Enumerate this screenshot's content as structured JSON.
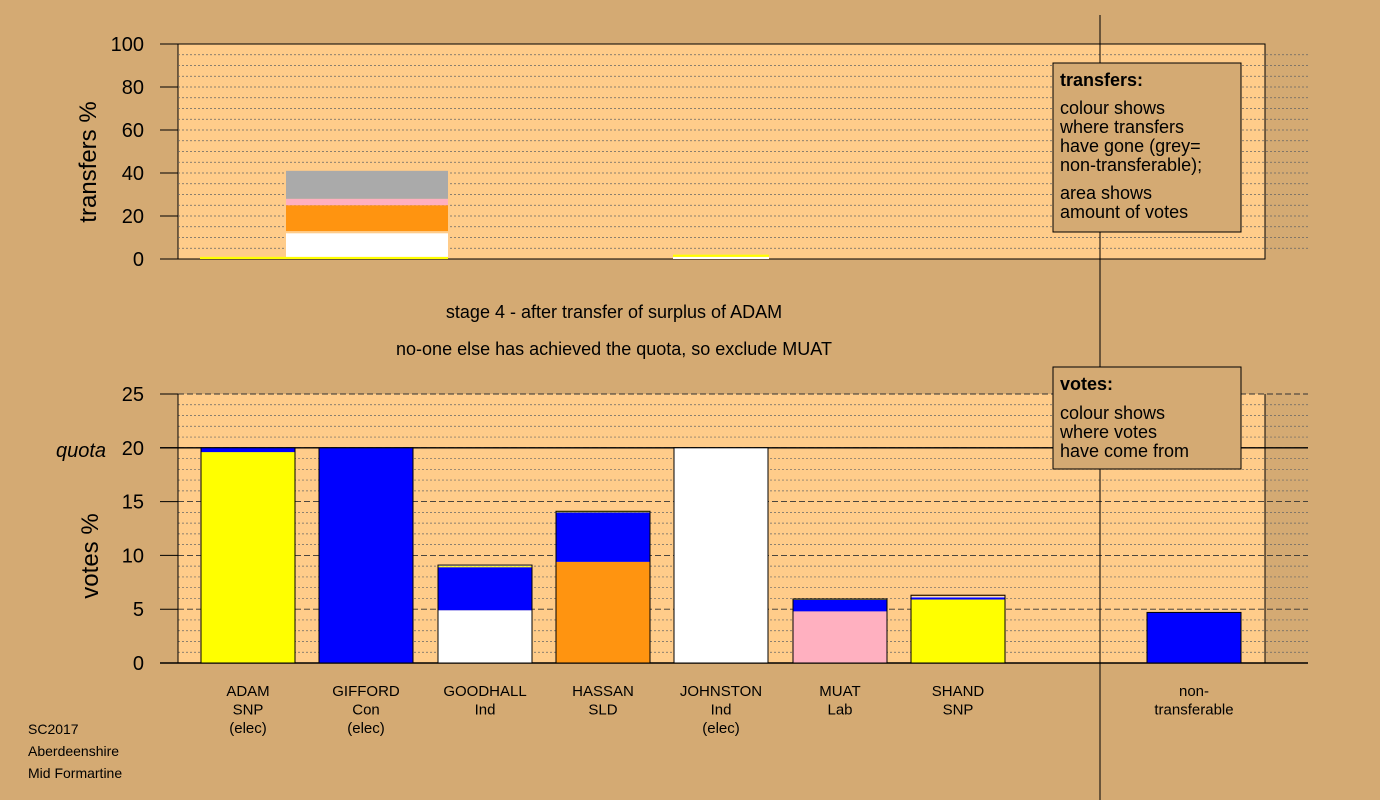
{
  "colors": {
    "background": "#d4aa73",
    "plot_bg": "#ffcc8a",
    "SNP": "#ffff00",
    "Con": "#0000ff",
    "Ind": "#ffffff",
    "SLD": "#ff9410",
    "Lab": "#ffb0c0",
    "nontransferable": "#aaaaaa"
  },
  "captions": {
    "stage": "stage 4 - after transfer of surplus of ADAM",
    "action": "no-one else has achieved the quota, so exclude MUAT"
  },
  "footer": [
    "SC2017",
    "Aberdeenshire",
    "Mid Formartine"
  ],
  "legends": {
    "transfers": {
      "title": "transfers:",
      "lines": [
        "colour shows",
        "where transfers",
        "have gone (grey=",
        "non-transferable);",
        "area shows",
        "amount of votes"
      ]
    },
    "votes": {
      "title": "votes:",
      "lines": [
        "colour shows",
        "where votes",
        "have come from"
      ]
    }
  },
  "chart_data": [
    {
      "type": "bar",
      "name": "transfers",
      "ylabel": "transfers %",
      "ylim": [
        0,
        100
      ],
      "yticks": [
        0,
        20,
        40,
        60,
        80,
        100
      ],
      "grid": true,
      "legend_position": "top-right",
      "transfers": [
        {
          "from": "ADAM",
          "width_share": 0.1,
          "segments": [
            {
              "color": "#ffff00",
              "value": 1
            }
          ]
        },
        {
          "from": "GIFFORD",
          "width_share": 1.0,
          "segments": [
            {
              "color": "#ffff00",
              "value": 1
            },
            {
              "color": "#ffffff",
              "value": 11
            },
            {
              "color": "#ffcc8a",
              "value": 1
            },
            {
              "color": "#ff9410",
              "value": 12
            },
            {
              "color": "#ffb0c0",
              "value": 3
            },
            {
              "color": "#aaaaaa",
              "value": 13
            }
          ]
        },
        {
          "from": "JOHNSTON",
          "width_share": 1.0,
          "segments": [
            {
              "color": "#ffffff",
              "value": 1
            },
            {
              "color": "#ffff00",
              "value": 1
            }
          ]
        }
      ]
    },
    {
      "type": "bar",
      "name": "votes",
      "ylabel": "votes %",
      "ylim": [
        0,
        25
      ],
      "yticks": [
        0,
        5,
        10,
        15,
        20,
        25
      ],
      "quota": 20,
      "quota_label": "quota",
      "grid": true,
      "legend_position": "top-right",
      "categories": [
        {
          "label": [
            "ADAM",
            "SNP",
            "(elec)"
          ]
        },
        {
          "label": [
            "GIFFORD",
            "Con",
            "(elec)"
          ]
        },
        {
          "label": [
            "GOODHALL",
            "Ind"
          ]
        },
        {
          "label": [
            "HASSAN",
            "SLD"
          ]
        },
        {
          "label": [
            "JOHNSTON",
            "Ind",
            "(elec)"
          ]
        },
        {
          "label": [
            "MUAT",
            "Lab"
          ]
        },
        {
          "label": [
            "SHAND",
            "SNP"
          ]
        },
        {
          "label": [
            "non-",
            "transferable"
          ]
        }
      ],
      "stacks": [
        [
          {
            "color": "#ffff00",
            "value": 19.6
          },
          {
            "color": "#0000ff",
            "value": 0.4
          }
        ],
        [
          {
            "color": "#0000ff",
            "value": 20.0
          }
        ],
        [
          {
            "color": "#ffffff",
            "value": 4.9
          },
          {
            "color": "#0000ff",
            "value": 4.0
          },
          {
            "color": "#ffff00",
            "value": 0.1
          },
          {
            "color": "#ffffff",
            "value": 0.1
          }
        ],
        [
          {
            "color": "#ff9410",
            "value": 9.4
          },
          {
            "color": "#0000ff",
            "value": 4.6
          },
          {
            "color": "#ffff00",
            "value": 0.1
          }
        ],
        [
          {
            "color": "#ffffff",
            "value": 20.0
          }
        ],
        [
          {
            "color": "#ffb0c0",
            "value": 4.8
          },
          {
            "color": "#0000ff",
            "value": 1.1
          },
          {
            "color": "#ffff00",
            "value": 0.05
          }
        ],
        [
          {
            "color": "#ffff00",
            "value": 5.9
          },
          {
            "color": "#0000ff",
            "value": 0.2
          },
          {
            "color": "#ffffff",
            "value": 0.1
          },
          {
            "color": "#ff9410",
            "value": 0.1
          }
        ],
        [
          {
            "color": "#0000ff",
            "value": 4.7
          }
        ]
      ]
    }
  ]
}
